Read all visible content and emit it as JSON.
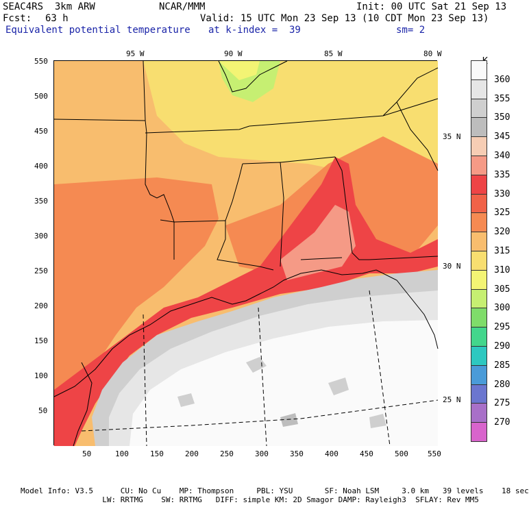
{
  "header": {
    "model": "SEAC4RS  3km ARW",
    "org": "NCAR/MMM",
    "init": "Init: 00 UTC Sat 21 Sep 13",
    "fcst_label": "Fcst:",
    "fcst_value": "63 h",
    "valid": "Valid: 15 UTC Mon 23 Sep 13 (10 CDT Mon 23 Sep 13)",
    "field": "Equivalent potential temperature",
    "level": "at k-index =  39",
    "smoothing": "sm= 2"
  },
  "map": {
    "lon_labels": [
      "95 W",
      "90 W",
      "85 W",
      "80 W"
    ],
    "lat_labels": [
      "35 N",
      "30 N",
      "25 N"
    ],
    "x_ticks": [
      "50",
      "100",
      "150",
      "200",
      "250",
      "300",
      "350",
      "400",
      "450",
      "500",
      "550"
    ],
    "y_ticks": [
      "550",
      "500",
      "450",
      "400",
      "350",
      "300",
      "250",
      "200",
      "150",
      "100",
      "50"
    ]
  },
  "legend": {
    "unit": "K",
    "levels": [
      {
        "label": "360",
        "color": "#fafafa"
      },
      {
        "label": "355",
        "color": "#e6e6e6"
      },
      {
        "label": "350",
        "color": "#cfcfcf"
      },
      {
        "label": "345",
        "color": "#bdbdbd"
      },
      {
        "label": "340",
        "color": "#f6cdb4"
      },
      {
        "label": "335",
        "color": "#f59a86"
      },
      {
        "label": "330",
        "color": "#ee4446"
      },
      {
        "label": "325",
        "color": "#f06248"
      },
      {
        "label": "320",
        "color": "#f58a52"
      },
      {
        "label": "315",
        "color": "#f8bd6e"
      },
      {
        "label": "310",
        "color": "#f8de70"
      },
      {
        "label": "305",
        "color": "#f3f474"
      },
      {
        "label": "300",
        "color": "#c6ef72"
      },
      {
        "label": "295",
        "color": "#7fdc6a"
      },
      {
        "label": "290",
        "color": "#43d68c"
      },
      {
        "label": "285",
        "color": "#2ec8c0"
      },
      {
        "label": "280",
        "color": "#4a9bd8"
      },
      {
        "label": "275",
        "color": "#6b76cf"
      },
      {
        "label": "270",
        "color": "#a870c8"
      },
      {
        "label": "",
        "color": "#d864cc"
      }
    ]
  },
  "footer": {
    "line1": "Model Info: V3.5      CU: No Cu    MP: Thompson     PBL: YSU       SF: Noah LSM     3.0 km   39 levels    18 sec",
    "line2": "                  LW: RRTMG    SW: RRTMG   DIFF: simple KM: 2D Smagor DAMP: Rayleigh3  SFLAY: Rev MM5"
  }
}
